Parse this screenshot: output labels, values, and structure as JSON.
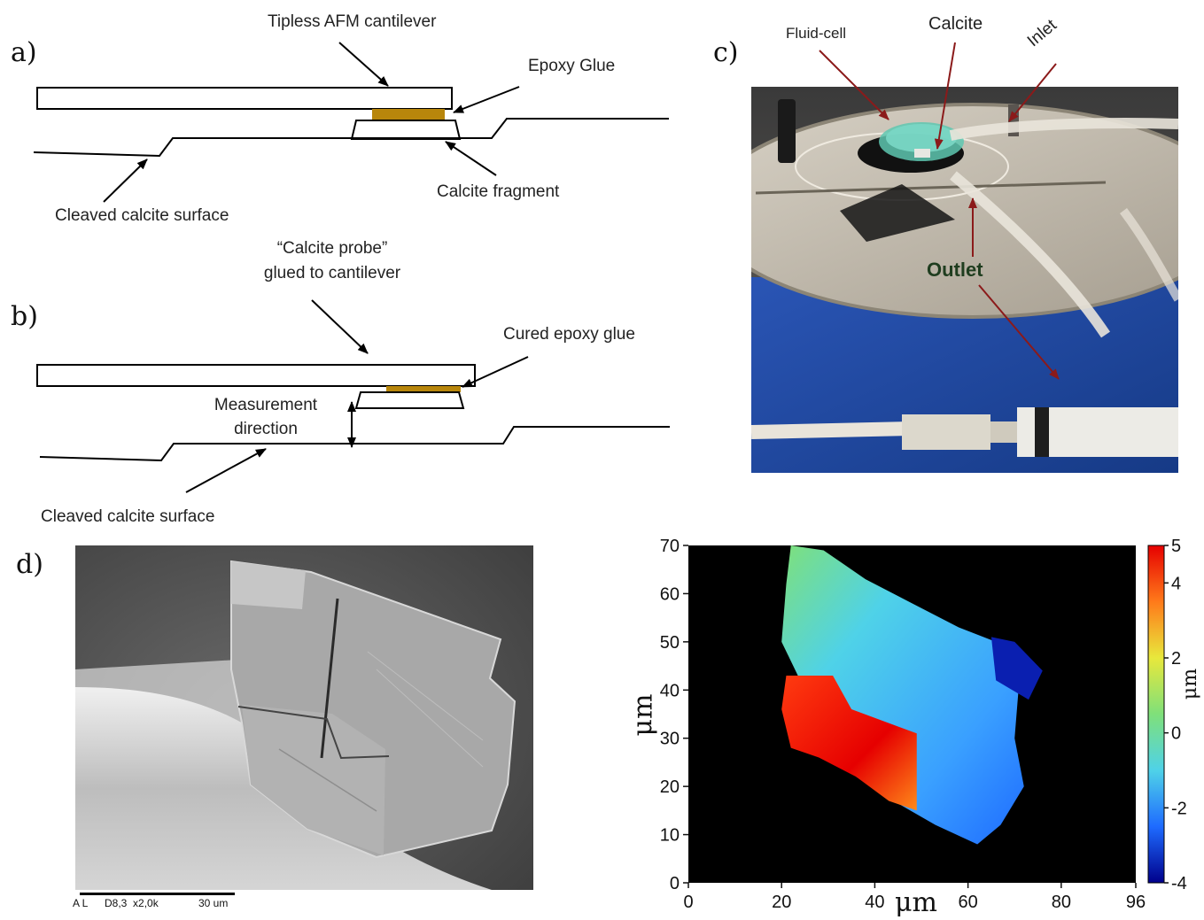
{
  "panels": {
    "a": {
      "letter": "a)",
      "labels": {
        "cantilever": "Tipless AFM cantilever",
        "glue": "Epoxy Glue",
        "fragment": "Calcite fragment",
        "surface": "Cleaved calcite surface"
      },
      "colors": {
        "glue": "#b8860b"
      }
    },
    "b": {
      "letter": "b)",
      "labels": {
        "probe_line1": "“Calcite probe”",
        "probe_line2": "glued to cantilever",
        "cured_glue": "Cured epoxy glue",
        "measurement_line1": "Measurement",
        "measurement_line2": "direction",
        "surface": "Cleaved calcite surface"
      },
      "colors": {
        "glue": "#b8860b"
      }
    },
    "c": {
      "letter": "c)",
      "labels": {
        "fluid_cell": "Fluid-cell",
        "calcite": "Calcite",
        "inlet": "Inlet",
        "outlet": "Outlet"
      },
      "colors": {
        "arrow": "#8b1a1a",
        "outlet_text": "#1f3d1f",
        "base": "#1c3f8f",
        "plate": "#b9b2a6"
      }
    },
    "d": {
      "letter": "d)",
      "sem_caption": {
        "detector": "A L",
        "params": "D8,3  x2,0k",
        "scale": "30 um"
      }
    },
    "map": {
      "x_label": "μm",
      "y_label": "μm",
      "colorbar_label": "μm"
    }
  },
  "chart_data": {
    "type": "heatmap",
    "title": "",
    "xlabel": "μm",
    "ylabel": "μm",
    "xlim": [
      0,
      96
    ],
    "ylim": [
      0,
      70
    ],
    "x_ticks": [
      0,
      20,
      40,
      60,
      80,
      96
    ],
    "y_ticks": [
      0,
      10,
      20,
      30,
      40,
      50,
      60,
      70
    ],
    "colorbar": {
      "label": "μm",
      "range": [
        -4,
        5
      ],
      "ticks": [
        5,
        4,
        2,
        0,
        -2,
        -4
      ],
      "colormap": [
        "#00008b",
        "#1e6bff",
        "#4fd2e8",
        "#7fe07a",
        "#e8e83c",
        "#ff7a1a",
        "#e60000"
      ]
    }
  }
}
